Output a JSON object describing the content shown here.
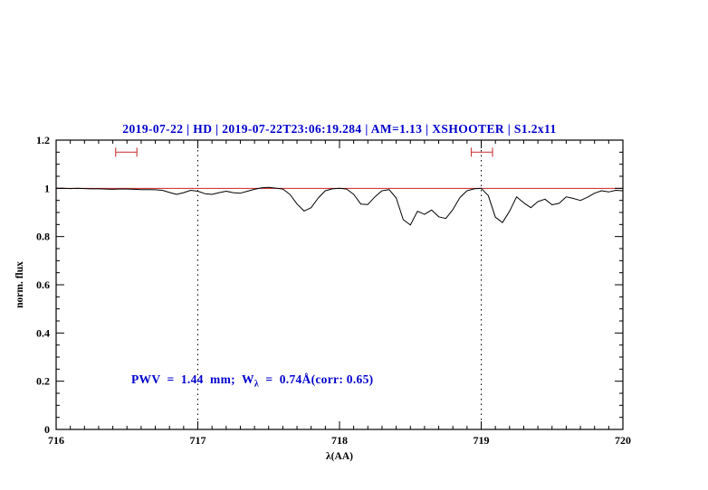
{
  "title": {
    "text": "2019-07-22 | HD | 2019-07-22T23:06:19.284 | AM=1.13 | XSHOOTER | S1.2x11",
    "color": "#0000cd"
  },
  "annotation": {
    "prefix": "PWV  =  1.44  mm;  W",
    "sub": "λ",
    "suffix": "  =  0.74Å(corr: 0.65)",
    "color": "#0000cd"
  },
  "chart_data": {
    "type": "line",
    "title": "2019-07-22 | HD | 2019-07-22T23:06:19.284 | AM=1.13 | XSHOOTER | S1.2x11",
    "xlabel": "λ(AA)",
    "ylabel": "norm. flux",
    "xlim": [
      716,
      720
    ],
    "ylim": [
      0,
      1.2
    ],
    "xticks": [
      716,
      717,
      718,
      719,
      720
    ],
    "xtick_labels": [
      "716",
      "717",
      "718",
      "719",
      "720"
    ],
    "yticks": [
      0,
      0.2,
      0.4,
      0.6,
      0.8,
      1,
      1.2
    ],
    "ytick_labels": [
      "0",
      "0.2",
      "0.4",
      "0.6",
      "0.8",
      "1",
      "1.2"
    ],
    "x_minor_step": 0.1,
    "y_minor_step": 0.05,
    "grid": false,
    "legend": "none",
    "series": [
      {
        "name": "observed normalized spectrum",
        "color": "#000000",
        "x_start": 716.0,
        "x_step": 0.05,
        "flux": [
          1.0,
          1.0,
          0.999,
          1.0,
          0.999,
          0.998,
          0.998,
          0.997,
          0.996,
          0.997,
          0.997,
          0.996,
          0.995,
          0.995,
          0.994,
          0.992,
          0.983,
          0.975,
          0.982,
          0.992,
          0.988,
          0.978,
          0.975,
          0.982,
          0.988,
          0.982,
          0.98,
          0.988,
          0.996,
          1.002,
          1.004,
          1.001,
          0.997,
          0.975,
          0.935,
          0.906,
          0.92,
          0.96,
          0.99,
          0.998,
          1.0,
          0.997,
          0.975,
          0.935,
          0.933,
          0.965,
          0.99,
          0.995,
          0.96,
          0.87,
          0.848,
          0.905,
          0.892,
          0.91,
          0.882,
          0.875,
          0.912,
          0.962,
          0.99,
          0.998,
          1.0,
          0.97,
          0.88,
          0.858,
          0.905,
          0.965,
          0.94,
          0.92,
          0.945,
          0.955,
          0.932,
          0.938,
          0.965,
          0.958,
          0.95,
          0.963,
          0.98,
          0.99,
          0.985,
          0.992,
          0.99
        ]
      }
    ],
    "continuum": {
      "y": 1.0,
      "color": "#cc2222"
    },
    "dotted_vlines": {
      "x": [
        717,
        719
      ],
      "color": "#000000"
    },
    "range_markers": {
      "color": "#cc4444",
      "y": 1.15,
      "intervals": [
        [
          716.42,
          716.57
        ],
        [
          718.93,
          719.08
        ]
      ]
    }
  }
}
